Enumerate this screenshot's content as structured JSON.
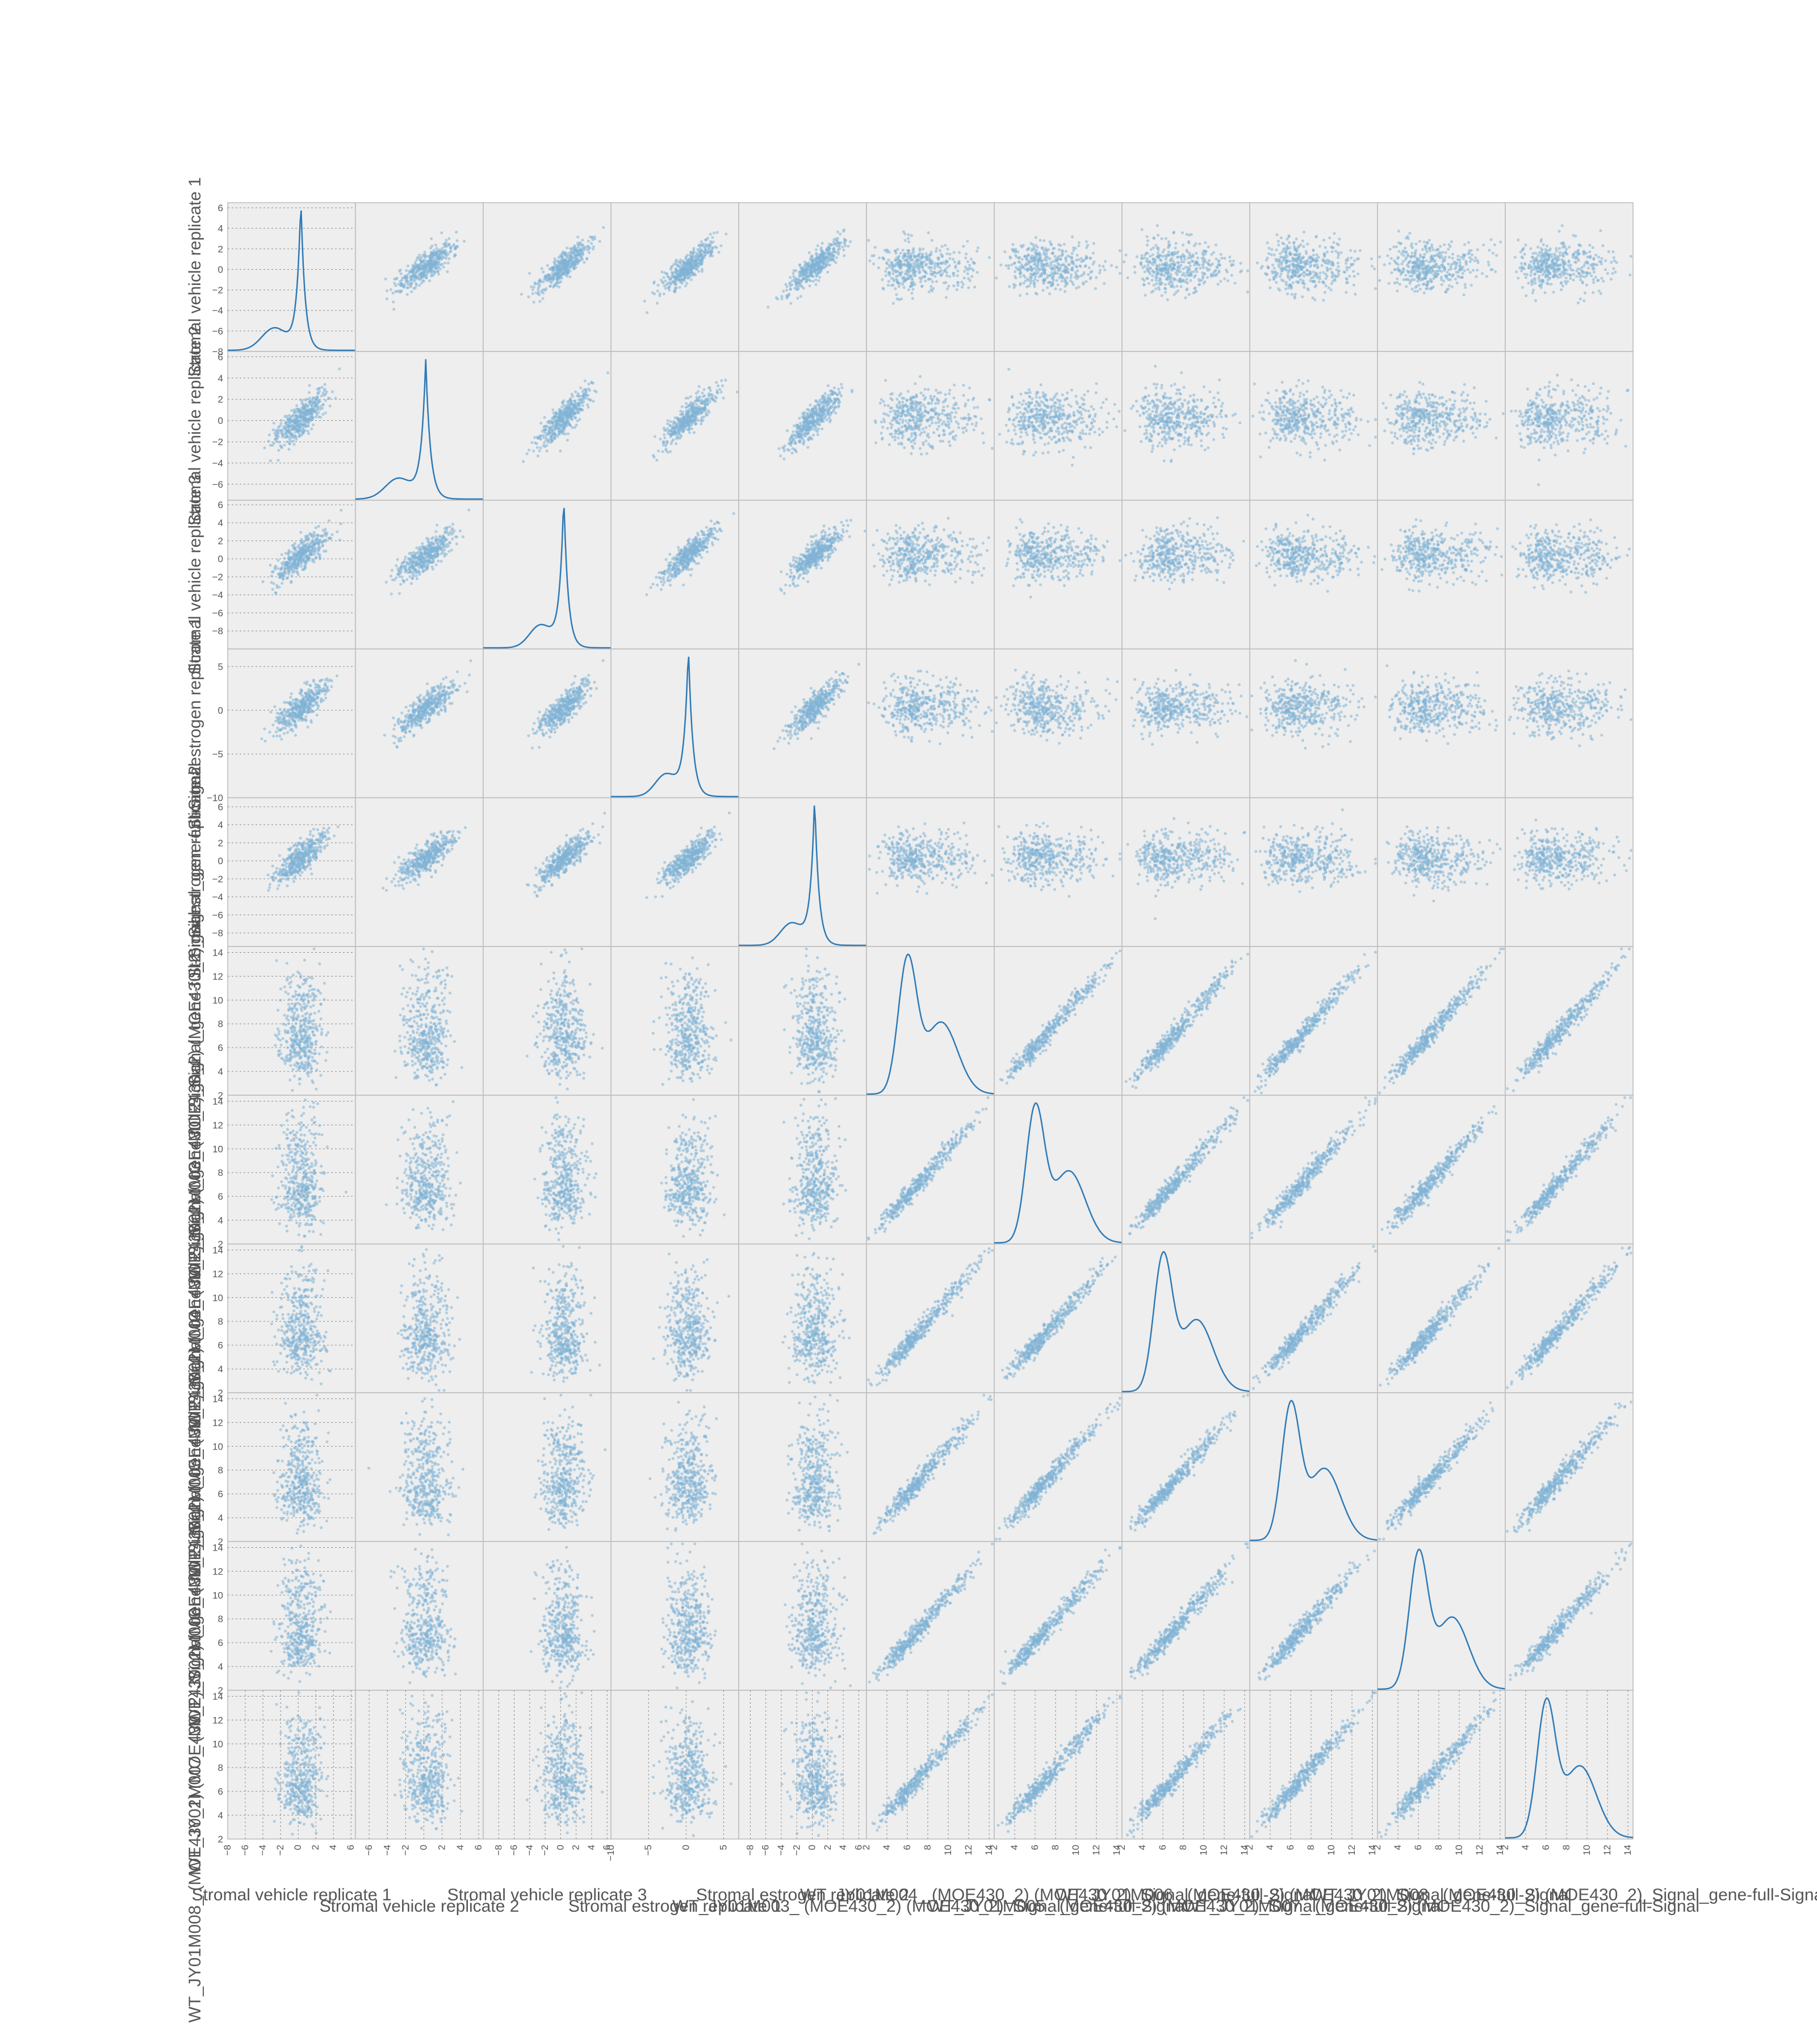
{
  "chart_data": {
    "type": "scatter",
    "kind": "scatter_matrix",
    "diagonal": "kde",
    "background": "#eeeeee",
    "border_color": "#bcbcbc",
    "marker_color": "#7fb3d5",
    "line_color": "#2e7ab6",
    "grid": true,
    "variables": [
      {
        "label": "Stromal vehicle replicate 1",
        "range": [
          -8,
          6.5
        ],
        "ticks": [
          -8,
          -6,
          -4,
          -2,
          0,
          2,
          4,
          6
        ],
        "tick_labels": [
          "−8",
          "−6",
          "−4",
          "−2",
          "0",
          "2",
          "4",
          "6"
        ],
        "center": 0.3,
        "spread": 1.2
      },
      {
        "label": "Stromal vehicle replicate 2",
        "range": [
          -7.5,
          6.5
        ],
        "ticks": [
          -6,
          -4,
          -2,
          0,
          2,
          4,
          6
        ],
        "tick_labels": [
          "−6",
          "−4",
          "−2",
          "0",
          "2",
          "4",
          "6"
        ],
        "center": 0.2,
        "spread": 1.3
      },
      {
        "label": "Stromal vehicle replicate 3",
        "range": [
          -10,
          6.5
        ],
        "ticks": [
          -8,
          -6,
          -4,
          -2,
          0,
          2,
          4,
          6
        ],
        "tick_labels": [
          "−8",
          "−6",
          "−4",
          "−2",
          "0",
          "2",
          "4",
          "6"
        ],
        "center": 0.4,
        "spread": 1.4
      },
      {
        "label": "Stromal estrogen replicate 1",
        "range": [
          -10,
          7
        ],
        "ticks": [
          -10,
          -5,
          0,
          5
        ],
        "tick_labels": [
          "−10",
          "−5",
          "0",
          "5"
        ],
        "center": 0.3,
        "spread": 1.5
      },
      {
        "label": "Stromal estrogen replicate 2",
        "range": [
          -9.5,
          7
        ],
        "ticks": [
          -8,
          -6,
          -4,
          -2,
          0,
          2,
          4,
          6
        ],
        "tick_labels": [
          "−8",
          "−6",
          "−4",
          "−2",
          "0",
          "2",
          "4",
          "6"
        ],
        "center": 0.3,
        "spread": 1.4
      },
      {
        "label": "WT_JY01M003_ (MOE430_2) (MOE430_2)_Signal_gene-full-Signal",
        "range": [
          2,
          14.5
        ],
        "ticks": [
          2,
          4,
          6,
          8,
          10,
          12,
          14
        ],
        "tick_labels": [
          "2",
          "4",
          "6",
          "8",
          "10",
          "12",
          "14"
        ],
        "center": 7,
        "spread": 2.4
      },
      {
        "label": "WT_JY01M004_ (MOE430_2) (MOE430_2)_Signal_gene-full-Signal",
        "range": [
          2,
          14.5
        ],
        "ticks": [
          2,
          4,
          6,
          8,
          10,
          12,
          14
        ],
        "tick_labels": [
          "2",
          "4",
          "6",
          "8",
          "10",
          "12",
          "14"
        ],
        "center": 7,
        "spread": 2.4
      },
      {
        "label": "WT_JY01M005_ (MOE430_2) (MOE430_2)_Signal_gene-full-Signal",
        "range": [
          2,
          14.5
        ],
        "ticks": [
          2,
          4,
          6,
          8,
          10,
          12,
          14
        ],
        "tick_labels": [
          "2",
          "4",
          "6",
          "8",
          "10",
          "12",
          "14"
        ],
        "center": 7,
        "spread": 2.4
      },
      {
        "label": "WT_JY01M006_ (MOE430_2) (MOE430_2)_Signal_gene-full-Signal",
        "range": [
          2,
          14.5
        ],
        "ticks": [
          2,
          4,
          6,
          8,
          10,
          12,
          14
        ],
        "tick_labels": [
          "2",
          "4",
          "6",
          "8",
          "10",
          "12",
          "14"
        ],
        "center": 7,
        "spread": 2.4
      },
      {
        "label": "WT_JY01M007_ (MOE430_2) (MOE430_2)_Signal_gene-full-Signal",
        "range": [
          2,
          14.5
        ],
        "ticks": [
          2,
          4,
          6,
          8,
          10,
          12,
          14
        ],
        "tick_labels": [
          "2",
          "4",
          "6",
          "8",
          "10",
          "12",
          "14"
        ],
        "center": 7,
        "spread": 2.4
      },
      {
        "label": "WT_JY01M008_ (MOE430_2) (MOE430_2)_Signal_gene-full-Signal",
        "range": [
          2,
          14.5
        ],
        "ticks": [
          2,
          4,
          6,
          8,
          10,
          12,
          14
        ],
        "tick_labels": [
          "2",
          "4",
          "6",
          "8",
          "10",
          "12",
          "14"
        ],
        "center": 7,
        "spread": 2.4
      }
    ]
  }
}
